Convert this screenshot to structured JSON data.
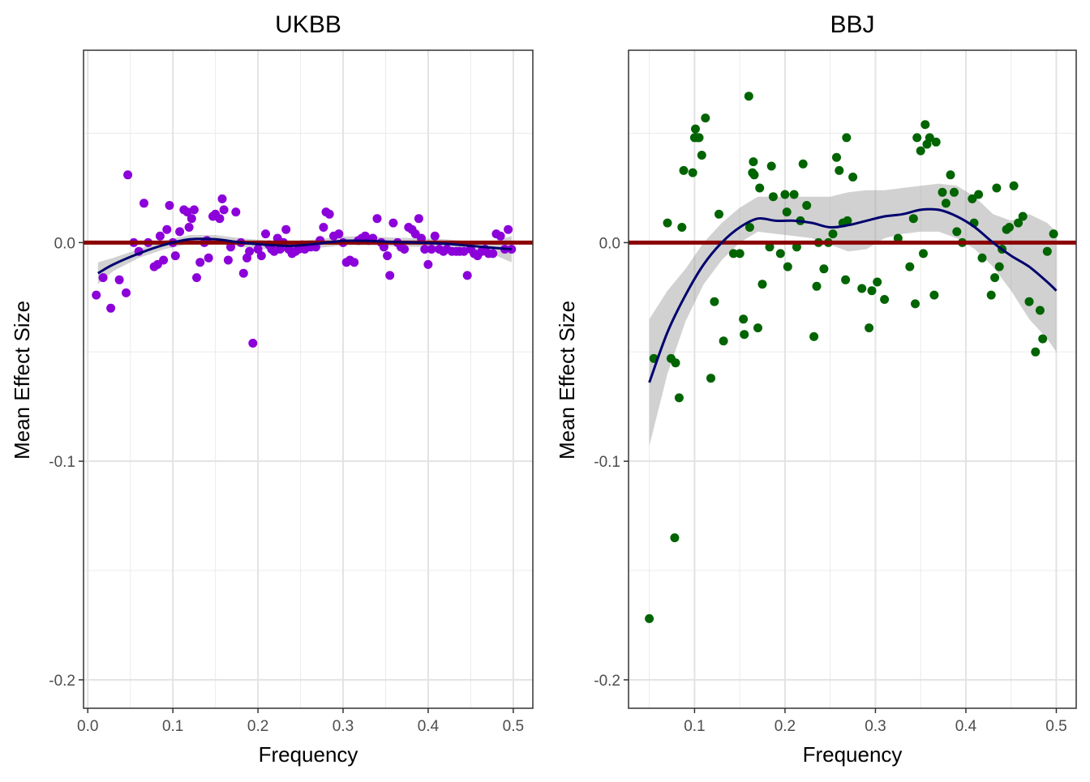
{
  "chart_data": [
    {
      "type": "scatter",
      "title": "UKBB",
      "xlabel": "Frequency",
      "ylabel": "Mean Effect Size",
      "xlim": [
        -0.005,
        0.523
      ],
      "ylim": [
        -0.213,
        0.088
      ],
      "x_ticks": [
        0.0,
        0.1,
        0.2,
        0.3,
        0.4,
        0.5
      ],
      "x_tick_labels": [
        "0.0",
        "0.1",
        "0.2",
        "0.3",
        "0.4",
        "0.5"
      ],
      "y_ticks": [
        0.0,
        -0.1,
        -0.2
      ],
      "y_tick_labels": [
        "0.0",
        "-0.1",
        "-0.2"
      ],
      "grid": true,
      "reference_line": 0,
      "colors": {
        "points": "#8c00d9",
        "smooth": "#00006e",
        "band": "#999999",
        "reference": "#8b0000"
      },
      "points": [
        [
          0.01,
          -0.024
        ],
        [
          0.018,
          -0.016
        ],
        [
          0.027,
          -0.03
        ],
        [
          0.037,
          -0.017
        ],
        [
          0.045,
          -0.023
        ],
        [
          0.047,
          0.031
        ],
        [
          0.054,
          0.0
        ],
        [
          0.06,
          -0.004
        ],
        [
          0.066,
          0.018
        ],
        [
          0.071,
          0.0
        ],
        [
          0.078,
          -0.011
        ],
        [
          0.082,
          -0.01
        ],
        [
          0.085,
          0.003
        ],
        [
          0.089,
          -0.008
        ],
        [
          0.093,
          0.006
        ],
        [
          0.096,
          0.017
        ],
        [
          0.1,
          0.0
        ],
        [
          0.103,
          -0.006
        ],
        [
          0.108,
          0.005
        ],
        [
          0.113,
          0.015
        ],
        [
          0.117,
          0.014
        ],
        [
          0.119,
          0.007
        ],
        [
          0.122,
          0.011
        ],
        [
          0.125,
          0.015
        ],
        [
          0.128,
          -0.016
        ],
        [
          0.132,
          -0.009
        ],
        [
          0.137,
          0.0
        ],
        [
          0.14,
          0.001
        ],
        [
          0.142,
          -0.007
        ],
        [
          0.147,
          0.012
        ],
        [
          0.15,
          0.013
        ],
        [
          0.155,
          0.011
        ],
        [
          0.158,
          0.02
        ],
        [
          0.16,
          0.015
        ],
        [
          0.165,
          -0.008
        ],
        [
          0.168,
          -0.002
        ],
        [
          0.174,
          0.014
        ],
        [
          0.18,
          0.0
        ],
        [
          0.183,
          -0.014
        ],
        [
          0.187,
          -0.007
        ],
        [
          0.19,
          -0.004
        ],
        [
          0.194,
          -0.046
        ],
        [
          0.2,
          -0.003
        ],
        [
          0.204,
          -0.006
        ],
        [
          0.209,
          0.004
        ],
        [
          0.213,
          -0.001
        ],
        [
          0.216,
          -0.003
        ],
        [
          0.219,
          -0.004
        ],
        [
          0.223,
          0.002
        ],
        [
          0.226,
          -0.003
        ],
        [
          0.23,
          0.0
        ],
        [
          0.233,
          0.006
        ],
        [
          0.236,
          -0.003
        ],
        [
          0.24,
          -0.005
        ],
        [
          0.244,
          -0.004
        ],
        [
          0.248,
          -0.003
        ],
        [
          0.252,
          -0.001
        ],
        [
          0.255,
          -0.003
        ],
        [
          0.259,
          -0.002
        ],
        [
          0.262,
          -0.002
        ],
        [
          0.268,
          -0.002
        ],
        [
          0.273,
          0.001
        ],
        [
          0.277,
          0.007
        ],
        [
          0.28,
          0.014
        ],
        [
          0.284,
          0.013
        ],
        [
          0.289,
          0.003
        ],
        [
          0.295,
          0.004
        ],
        [
          0.3,
          0.0
        ],
        [
          0.304,
          -0.009
        ],
        [
          0.308,
          -0.008
        ],
        [
          0.313,
          -0.009
        ],
        [
          0.318,
          0.001
        ],
        [
          0.322,
          0.002
        ],
        [
          0.326,
          0.003
        ],
        [
          0.33,
          0.001
        ],
        [
          0.335,
          0.002
        ],
        [
          0.34,
          0.011
        ],
        [
          0.345,
          0.0
        ],
        [
          0.348,
          -0.002
        ],
        [
          0.352,
          -0.006
        ],
        [
          0.355,
          -0.015
        ],
        [
          0.359,
          0.009
        ],
        [
          0.364,
          0.0
        ],
        [
          0.368,
          -0.002
        ],
        [
          0.372,
          -0.003
        ],
        [
          0.377,
          0.007
        ],
        [
          0.381,
          0.006
        ],
        [
          0.385,
          0.004
        ],
        [
          0.389,
          0.011
        ],
        [
          0.392,
          0.002
        ],
        [
          0.396,
          -0.003
        ],
        [
          0.4,
          -0.01
        ],
        [
          0.404,
          -0.003
        ],
        [
          0.408,
          0.003
        ],
        [
          0.413,
          -0.003
        ],
        [
          0.418,
          -0.004
        ],
        [
          0.422,
          -0.003
        ],
        [
          0.428,
          -0.004
        ],
        [
          0.433,
          -0.004
        ],
        [
          0.437,
          -0.004
        ],
        [
          0.442,
          -0.004
        ],
        [
          0.446,
          -0.015
        ],
        [
          0.45,
          -0.003
        ],
        [
          0.454,
          -0.005
        ],
        [
          0.458,
          -0.006
        ],
        [
          0.463,
          -0.004
        ],
        [
          0.467,
          -0.003
        ],
        [
          0.471,
          -0.005
        ],
        [
          0.476,
          -0.005
        ],
        [
          0.48,
          0.004
        ],
        [
          0.485,
          0.003
        ],
        [
          0.49,
          -0.003
        ],
        [
          0.494,
          0.006
        ],
        [
          0.498,
          -0.003
        ]
      ],
      "smooth": {
        "x": [
          0.012,
          0.03,
          0.06,
          0.09,
          0.12,
          0.15,
          0.18,
          0.21,
          0.24,
          0.27,
          0.3,
          0.33,
          0.36,
          0.39,
          0.42,
          0.45,
          0.48,
          0.498
        ],
        "y": [
          -0.014,
          -0.01,
          -0.005,
          -0.001,
          0.0015,
          0.0015,
          0.0,
          -0.001,
          -0.0015,
          -0.0005,
          0.0008,
          0.0008,
          0.0003,
          0.0,
          -0.0005,
          -0.0015,
          -0.0025,
          -0.003
        ],
        "lower": [
          -0.019,
          -0.013,
          -0.007,
          -0.003,
          -0.0005,
          -0.0005,
          -0.002,
          -0.003,
          -0.0035,
          -0.0025,
          -0.0012,
          -0.0012,
          -0.0017,
          -0.002,
          -0.0025,
          -0.0035,
          -0.006,
          -0.009
        ],
        "upper": [
          -0.009,
          -0.007,
          -0.003,
          0.001,
          0.0035,
          0.0035,
          0.002,
          0.001,
          0.0005,
          0.0015,
          0.0028,
          0.0028,
          0.0023,
          0.002,
          0.0015,
          0.0005,
          0.001,
          0.003
        ]
      }
    },
    {
      "type": "scatter",
      "title": "BBJ",
      "xlabel": "Frequency",
      "ylabel": "Mean Effect Size",
      "xlim": [
        0.027,
        0.522
      ],
      "ylim": [
        -0.213,
        0.088
      ],
      "x_ticks": [
        0.1,
        0.2,
        0.3,
        0.4,
        0.5
      ],
      "x_tick_labels": [
        "0.1",
        "0.2",
        "0.3",
        "0.4",
        "0.5"
      ],
      "y_ticks": [
        0.0,
        -0.1,
        -0.2
      ],
      "y_tick_labels": [
        "0.0",
        "-0.1",
        "-0.2"
      ],
      "grid": true,
      "reference_line": 0,
      "colors": {
        "points": "#006400",
        "smooth": "#00006e",
        "band": "#999999",
        "reference": "#8b0000"
      },
      "points": [
        [
          0.05,
          -0.172
        ],
        [
          0.055,
          -0.053
        ],
        [
          0.07,
          0.009
        ],
        [
          0.074,
          -0.053
        ],
        [
          0.078,
          -0.135
        ],
        [
          0.079,
          -0.055
        ],
        [
          0.083,
          -0.071
        ],
        [
          0.086,
          0.007
        ],
        [
          0.088,
          0.033
        ],
        [
          0.098,
          0.032
        ],
        [
          0.1,
          0.048
        ],
        [
          0.101,
          0.052
        ],
        [
          0.103,
          0.048
        ],
        [
          0.105,
          0.048
        ],
        [
          0.108,
          0.04
        ],
        [
          0.112,
          0.057
        ],
        [
          0.118,
          -0.062
        ],
        [
          0.122,
          -0.027
        ],
        [
          0.127,
          0.013
        ],
        [
          0.132,
          -0.045
        ],
        [
          0.143,
          -0.005
        ],
        [
          0.15,
          -0.005
        ],
        [
          0.154,
          -0.035
        ],
        [
          0.155,
          -0.042
        ],
        [
          0.16,
          0.067
        ],
        [
          0.161,
          0.007
        ],
        [
          0.164,
          0.032
        ],
        [
          0.165,
          0.037
        ],
        [
          0.166,
          0.031
        ],
        [
          0.17,
          -0.039
        ],
        [
          0.172,
          0.025
        ],
        [
          0.175,
          -0.019
        ],
        [
          0.183,
          -0.002
        ],
        [
          0.185,
          0.035
        ],
        [
          0.187,
          0.021
        ],
        [
          0.195,
          -0.005
        ],
        [
          0.2,
          0.022
        ],
        [
          0.202,
          0.014
        ],
        [
          0.203,
          -0.011
        ],
        [
          0.21,
          0.022
        ],
        [
          0.213,
          -0.002
        ],
        [
          0.217,
          0.01
        ],
        [
          0.22,
          0.036
        ],
        [
          0.224,
          0.017
        ],
        [
          0.232,
          -0.043
        ],
        [
          0.235,
          -0.02
        ],
        [
          0.237,
          0.0
        ],
        [
          0.243,
          -0.012
        ],
        [
          0.248,
          0.0
        ],
        [
          0.253,
          0.004
        ],
        [
          0.257,
          0.039
        ],
        [
          0.26,
          0.033
        ],
        [
          0.264,
          0.009
        ],
        [
          0.267,
          -0.017
        ],
        [
          0.268,
          0.048
        ],
        [
          0.269,
          0.01
        ],
        [
          0.275,
          0.03
        ],
        [
          0.285,
          -0.021
        ],
        [
          0.293,
          -0.039
        ],
        [
          0.296,
          -0.022
        ],
        [
          0.302,
          -0.018
        ],
        [
          0.31,
          -0.026
        ],
        [
          0.325,
          0.002
        ],
        [
          0.338,
          -0.011
        ],
        [
          0.342,
          0.011
        ],
        [
          0.344,
          -0.028
        ],
        [
          0.346,
          0.048
        ],
        [
          0.35,
          0.042
        ],
        [
          0.353,
          -0.005
        ],
        [
          0.355,
          0.054
        ],
        [
          0.357,
          0.045
        ],
        [
          0.36,
          0.048
        ],
        [
          0.365,
          -0.024
        ],
        [
          0.367,
          0.046
        ],
        [
          0.374,
          0.023
        ],
        [
          0.378,
          0.018
        ],
        [
          0.383,
          0.031
        ],
        [
          0.387,
          0.023
        ],
        [
          0.39,
          0.005
        ],
        [
          0.396,
          0.0
        ],
        [
          0.407,
          0.02
        ],
        [
          0.409,
          0.009
        ],
        [
          0.414,
          0.022
        ],
        [
          0.418,
          -0.007
        ],
        [
          0.428,
          -0.024
        ],
        [
          0.432,
          -0.016
        ],
        [
          0.434,
          0.025
        ],
        [
          0.437,
          -0.011
        ],
        [
          0.44,
          -0.003
        ],
        [
          0.445,
          0.006
        ],
        [
          0.448,
          0.007
        ],
        [
          0.453,
          0.026
        ],
        [
          0.458,
          0.009
        ],
        [
          0.463,
          0.012
        ],
        [
          0.47,
          -0.027
        ],
        [
          0.477,
          -0.05
        ],
        [
          0.482,
          -0.031
        ],
        [
          0.485,
          -0.044
        ],
        [
          0.49,
          -0.004
        ],
        [
          0.497,
          0.004
        ]
      ],
      "smooth": {
        "x": [
          0.05,
          0.07,
          0.09,
          0.11,
          0.13,
          0.15,
          0.17,
          0.19,
          0.21,
          0.23,
          0.25,
          0.27,
          0.29,
          0.31,
          0.33,
          0.35,
          0.37,
          0.39,
          0.41,
          0.43,
          0.45,
          0.47,
          0.49,
          0.5
        ],
        "y": [
          -0.064,
          -0.041,
          -0.024,
          -0.01,
          0.0,
          0.007,
          0.011,
          0.01,
          0.01,
          0.009,
          0.007,
          0.008,
          0.01,
          0.012,
          0.013,
          0.015,
          0.015,
          0.012,
          0.007,
          0.0,
          -0.006,
          -0.011,
          -0.018,
          -0.022
        ],
        "lower": [
          -0.093,
          -0.06,
          -0.036,
          -0.019,
          -0.008,
          0.0,
          0.005,
          0.004,
          0.003,
          0.002,
          -0.001,
          -0.004,
          -0.003,
          0.002,
          0.004,
          0.005,
          0.005,
          0.002,
          -0.003,
          -0.011,
          -0.022,
          -0.035,
          -0.044,
          -0.05
        ],
        "upper": [
          -0.035,
          -0.022,
          -0.012,
          0.0,
          0.009,
          0.016,
          0.021,
          0.021,
          0.021,
          0.021,
          0.021,
          0.023,
          0.024,
          0.024,
          0.025,
          0.026,
          0.027,
          0.026,
          0.021,
          0.013,
          0.01,
          0.013,
          0.009,
          0.005
        ]
      }
    }
  ]
}
